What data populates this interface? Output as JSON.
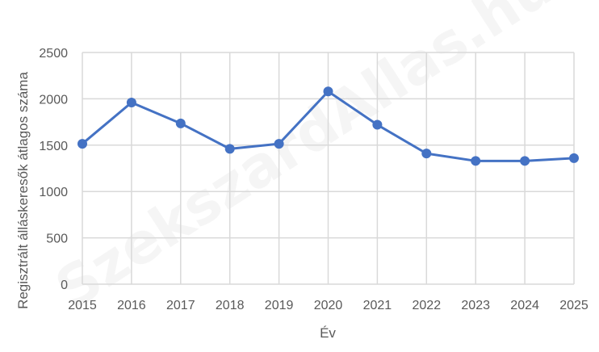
{
  "chart_data": {
    "type": "line",
    "title": "",
    "xlabel": "Év",
    "ylabel": "Regisztrált álláskeresők átlagos száma",
    "categories": [
      "2015",
      "2016",
      "2017",
      "2018",
      "2019",
      "2020",
      "2021",
      "2022",
      "2023",
      "2024",
      "2025"
    ],
    "series": [
      {
        "name": "Regisztrált álláskeresők átlagos száma",
        "values": [
          1515,
          1960,
          1735,
          1460,
          1515,
          2080,
          1720,
          1410,
          1330,
          1330,
          1360
        ],
        "color": "#4472C4",
        "marker": "circle"
      }
    ],
    "ylim": [
      0,
      2500
    ],
    "yticks": [
      0,
      500,
      1000,
      1500,
      2000,
      2500
    ],
    "grid": true,
    "legend": "none"
  },
  "watermark": "SzekszardAllas.hu",
  "colors": {
    "line": "#4472C4",
    "grid": "#D9D9D9",
    "axis_text": "#595959"
  }
}
